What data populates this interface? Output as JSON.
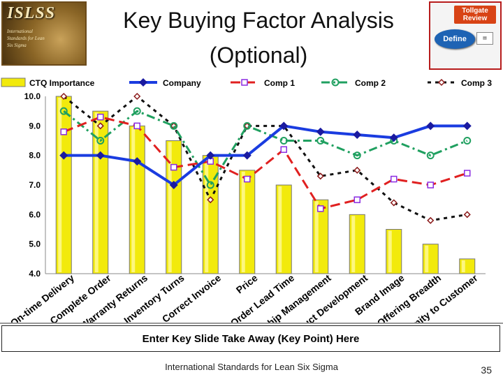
{
  "logo": {
    "title": "ISLSS",
    "subtitle": "International Standards for Lean Six Sigma"
  },
  "title": {
    "line1": "Key Buying Factor Analysis",
    "line2": "(Optional)"
  },
  "badge": {
    "title": "Tollgate Review",
    "define": "Define"
  },
  "takeaway": "Enter Key Slide Take Away (Key Point) Here",
  "footer": "International Standards for Lean Six Sigma",
  "page_number": "35",
  "colors": {
    "bar": "#f2ea0c",
    "company": "#1a3ce0",
    "comp1": "#e02020",
    "comp2": "#20a060",
    "comp3": "#111111",
    "comp3_marker": "#8b1a1a",
    "comp1_marker": "#8a2be2"
  },
  "chart_data": {
    "type": "bar",
    "categories": [
      "On-time Delivery",
      "Complete Order",
      "Warranty Returns",
      "Inventory Turns",
      "Correct Invoice",
      "Price",
      "Order Lead Time",
      "Relationship Management",
      "Product Development",
      "Brand Image",
      "Offering Breadth",
      "Proximity to Customer"
    ],
    "ylim": [
      4.0,
      10.0
    ],
    "yticks": [
      "4.0",
      "5.0",
      "6.0",
      "7.0",
      "8.0",
      "9.0",
      "10.0"
    ],
    "bars": {
      "name": "CTQ Importance",
      "values": [
        10.0,
        9.5,
        9.0,
        8.5,
        8.0,
        7.5,
        7.0,
        6.5,
        6.0,
        5.5,
        5.0,
        4.5
      ]
    },
    "series": [
      {
        "name": "Company",
        "values": [
          8.0,
          8.0,
          7.8,
          7.0,
          8.0,
          8.0,
          9.0,
          8.8,
          8.7,
          8.6,
          9.0,
          9.0
        ]
      },
      {
        "name": "Comp 1",
        "values": [
          8.8,
          9.3,
          9.0,
          7.6,
          7.8,
          7.2,
          8.2,
          6.2,
          6.5,
          7.2,
          7.0,
          7.4
        ]
      },
      {
        "name": "Comp 2",
        "values": [
          9.5,
          8.5,
          9.5,
          9.0,
          7.0,
          9.0,
          8.5,
          8.5,
          8.0,
          8.5,
          8.0,
          8.5
        ]
      },
      {
        "name": "Comp 3",
        "values": [
          10.0,
          9.0,
          10.0,
          9.0,
          6.5,
          9.0,
          9.0,
          7.3,
          7.5,
          6.4,
          5.8,
          6.0
        ]
      }
    ],
    "legend": "top"
  }
}
